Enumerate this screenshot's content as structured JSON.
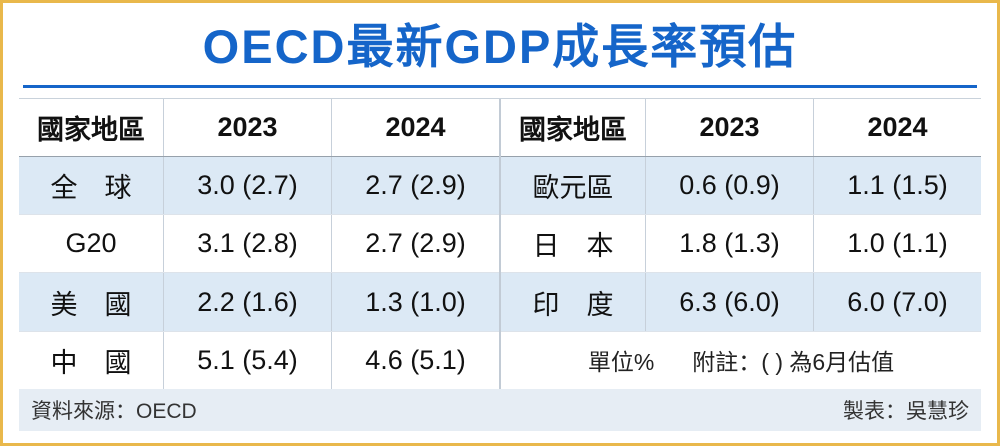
{
  "title": "OECD最新GDP成長率預估",
  "colors": {
    "accent": "#1565C9",
    "gold": "#E9B84B",
    "band": "#DCE9F5",
    "footer-bg": "#E6EDF4"
  },
  "chart_data": {
    "type": "table",
    "title": "OECD最新GDP成長率預估",
    "columns": [
      "國家地區",
      "2023",
      "2024"
    ],
    "left": {
      "headers": {
        "region": "國家地區",
        "y2023": "2023",
        "y2024": "2024"
      },
      "rows": [
        {
          "region": "全　球",
          "y2023": "3.0 (2.7)",
          "y2024": "2.7 (2.9)"
        },
        {
          "region": "G20",
          "y2023": "3.1 (2.8)",
          "y2024": "2.7 (2.9)"
        },
        {
          "region": "美　國",
          "y2023": "2.2 (1.6)",
          "y2024": "1.3 (1.0)"
        },
        {
          "region": "中　國",
          "y2023": "5.1 (5.4)",
          "y2024": "4.6 (5.1)"
        }
      ]
    },
    "right": {
      "headers": {
        "region": "國家地區",
        "y2023": "2023",
        "y2024": "2024"
      },
      "rows": [
        {
          "region": "歐元區",
          "y2023": "0.6 (0.9)",
          "y2024": "1.1 (1.5)"
        },
        {
          "region": "日　本",
          "y2023": "1.8 (1.3)",
          "y2024": "1.0 (1.1)"
        },
        {
          "region": "印　度",
          "y2023": "6.3 (6.0)",
          "y2024": "6.0 (7.0)"
        }
      ],
      "note": {
        "unit": "單位%",
        "text": "附註：( ) 為6月估值"
      }
    }
  },
  "footer": {
    "source": "資料來源：OECD",
    "credit": "製表：吳慧珍"
  }
}
